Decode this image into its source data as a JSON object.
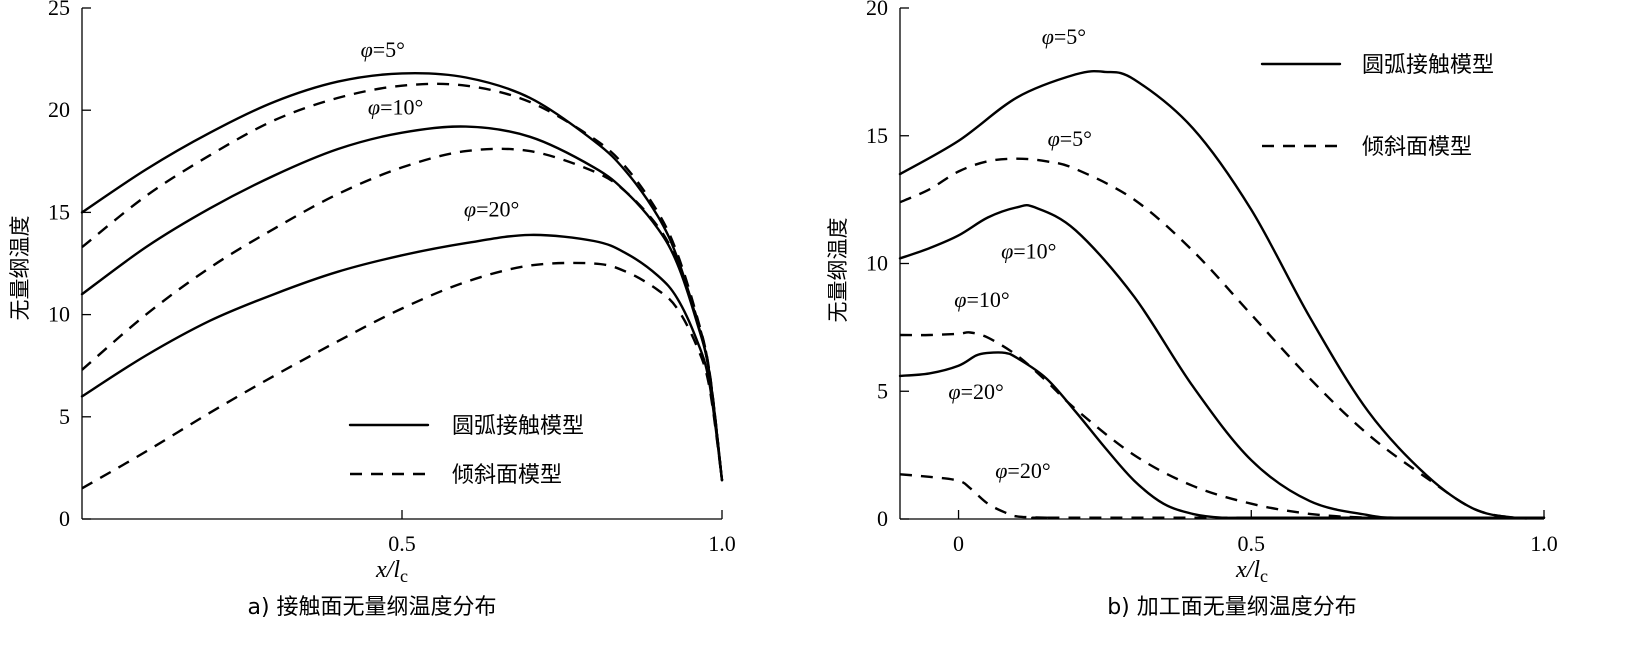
{
  "chart_data": [
    {
      "type": "line",
      "caption": "a) 接触面无量纲温度分布",
      "xlabel": "x/l",
      "xlabel_sub": "c",
      "ylabel": "无量纲温度",
      "xlim": [
        0,
        1.0
      ],
      "ylim": [
        0,
        25
      ],
      "xticks": [
        0.5,
        1.0
      ],
      "xtick_labels": [
        "0.5",
        "1.0"
      ],
      "yticks": [
        0,
        5,
        10,
        15,
        20,
        25
      ],
      "ytick_labels": [
        "0",
        "5",
        "10",
        "15",
        "20",
        "25"
      ],
      "legend": {
        "position": "bottom-right",
        "entries": [
          {
            "label": "圆弧接触模型",
            "style": "solid"
          },
          {
            "label": "倾斜面模型",
            "style": "dashed"
          }
        ]
      },
      "annotations": [
        {
          "text": "φ=5°",
          "x": 0.47,
          "y": 22.6
        },
        {
          "text": "φ=10°",
          "x": 0.49,
          "y": 19.8
        },
        {
          "text": "φ=20°",
          "x": 0.64,
          "y": 14.8
        }
      ],
      "series": [
        {
          "style": "solid",
          "group": "φ=5°",
          "x": [
            0,
            0.1,
            0.2,
            0.3,
            0.4,
            0.5,
            0.6,
            0.7,
            0.8,
            0.85,
            0.9,
            0.93,
            0.96,
            0.98,
            1.0
          ],
          "y": [
            15.0,
            17.1,
            18.9,
            20.4,
            21.4,
            21.8,
            21.6,
            20.6,
            18.5,
            17.0,
            14.8,
            12.8,
            9.8,
            7.2,
            1.9
          ]
        },
        {
          "style": "dashed",
          "group": "φ=5°",
          "x": [
            0,
            0.1,
            0.2,
            0.3,
            0.4,
            0.5,
            0.6,
            0.7,
            0.8,
            0.85,
            0.9,
            0.93,
            0.96,
            0.98,
            1.0
          ],
          "y": [
            13.3,
            15.8,
            17.8,
            19.5,
            20.6,
            21.2,
            21.2,
            20.4,
            18.6,
            17.2,
            15.0,
            13.0,
            10.0,
            7.3,
            1.9
          ]
        },
        {
          "style": "solid",
          "group": "φ=10°",
          "x": [
            0,
            0.1,
            0.2,
            0.3,
            0.4,
            0.5,
            0.6,
            0.7,
            0.8,
            0.85,
            0.9,
            0.93,
            0.96,
            0.98,
            1.0
          ],
          "y": [
            11.0,
            13.3,
            15.2,
            16.8,
            18.1,
            18.9,
            19.2,
            18.7,
            17.2,
            16.0,
            14.2,
            12.5,
            9.7,
            7.2,
            1.9
          ]
        },
        {
          "style": "dashed",
          "group": "φ=10°",
          "x": [
            0,
            0.1,
            0.2,
            0.3,
            0.4,
            0.5,
            0.6,
            0.7,
            0.8,
            0.85,
            0.9,
            0.93,
            0.96,
            0.98,
            1.0
          ],
          "y": [
            7.3,
            10.0,
            12.3,
            14.2,
            15.9,
            17.2,
            18.0,
            18.0,
            17.0,
            16.0,
            14.3,
            12.6,
            9.9,
            7.3,
            1.9
          ]
        },
        {
          "style": "solid",
          "group": "φ=20°",
          "x": [
            0,
            0.1,
            0.2,
            0.3,
            0.4,
            0.5,
            0.6,
            0.7,
            0.8,
            0.85,
            0.9,
            0.93,
            0.96,
            0.98,
            1.0
          ],
          "y": [
            6.0,
            8.0,
            9.7,
            11.0,
            12.1,
            12.9,
            13.5,
            13.9,
            13.6,
            13.0,
            11.9,
            10.8,
            8.8,
            6.7,
            1.9
          ]
        },
        {
          "style": "dashed",
          "group": "φ=20°",
          "x": [
            0,
            0.1,
            0.2,
            0.3,
            0.4,
            0.5,
            0.6,
            0.7,
            0.8,
            0.85,
            0.9,
            0.93,
            0.96,
            0.98,
            1.0
          ],
          "y": [
            1.5,
            3.3,
            5.2,
            7.0,
            8.7,
            10.3,
            11.6,
            12.4,
            12.5,
            12.1,
            11.2,
            10.3,
            8.5,
            6.5,
            1.9
          ]
        }
      ]
    },
    {
      "type": "line",
      "caption": "b) 加工面无量纲温度分布",
      "xlabel": "x/l",
      "xlabel_sub": "c",
      "ylabel": "无量纲温度",
      "xlim": [
        -0.1,
        1.0
      ],
      "ylim": [
        0,
        20
      ],
      "xticks": [
        0,
        0.5,
        1.0
      ],
      "xtick_labels": [
        "0",
        "0.5",
        "1.0"
      ],
      "yticks": [
        0,
        5,
        10,
        15,
        20
      ],
      "ytick_labels": [
        "0",
        "5",
        "10",
        "15",
        "20"
      ],
      "legend": {
        "position": "top-right",
        "entries": [
          {
            "label": "圆弧接触模型",
            "style": "solid"
          },
          {
            "label": "倾斜面模型",
            "style": "dashed"
          }
        ]
      },
      "annotations": [
        {
          "text": "φ=5°",
          "x": 0.18,
          "y": 18.6
        },
        {
          "text": "φ=5°",
          "x": 0.19,
          "y": 14.6
        },
        {
          "text": "φ=10°",
          "x": 0.12,
          "y": 10.2
        },
        {
          "text": "φ=10°",
          "x": 0.04,
          "y": 8.3
        },
        {
          "text": "φ=20°",
          "x": 0.03,
          "y": 4.7
        },
        {
          "text": "φ=20°",
          "x": 0.11,
          "y": 1.6
        }
      ],
      "series": [
        {
          "style": "solid",
          "group": "φ=5°",
          "x": [
            -0.1,
            0,
            0.1,
            0.2,
            0.25,
            0.3,
            0.4,
            0.5,
            0.6,
            0.7,
            0.8,
            0.88,
            0.95,
            1.0
          ],
          "y": [
            13.5,
            14.8,
            16.5,
            17.4,
            17.5,
            17.2,
            15.3,
            12.1,
            7.9,
            4.2,
            1.7,
            0.4,
            0.05,
            0.05
          ]
        },
        {
          "style": "dashed",
          "group": "φ=5°",
          "x": [
            -0.1,
            -0.05,
            0,
            0.05,
            0.1,
            0.15,
            0.2,
            0.3,
            0.4,
            0.5,
            0.6,
            0.7,
            0.8,
            0.88,
            0.95,
            1.0
          ],
          "y": [
            12.4,
            12.9,
            13.6,
            14.0,
            14.1,
            14.0,
            13.7,
            12.5,
            10.5,
            8.0,
            5.5,
            3.3,
            1.6,
            0.4,
            0.05,
            0.05
          ]
        },
        {
          "style": "solid",
          "group": "φ=10°",
          "x": [
            -0.1,
            -0.05,
            0,
            0.05,
            0.1,
            0.13,
            0.2,
            0.3,
            0.4,
            0.5,
            0.6,
            0.7,
            0.75,
            0.85,
            1.0
          ],
          "y": [
            10.2,
            10.6,
            11.1,
            11.8,
            12.2,
            12.2,
            11.3,
            8.7,
            5.2,
            2.3,
            0.7,
            0.15,
            0.05,
            0.05,
            0.05
          ]
        },
        {
          "style": "dashed",
          "group": "φ=10°",
          "x": [
            -0.1,
            -0.05,
            0,
            0.02,
            0.05,
            0.1,
            0.15,
            0.2,
            0.3,
            0.4,
            0.5,
            0.6,
            0.7,
            0.8,
            1.0
          ],
          "y": [
            7.2,
            7.2,
            7.25,
            7.3,
            7.1,
            6.4,
            5.4,
            4.3,
            2.5,
            1.3,
            0.6,
            0.2,
            0.05,
            0.05,
            0.05
          ]
        },
        {
          "style": "solid",
          "group": "φ=20°",
          "x": [
            -0.1,
            -0.05,
            0,
            0.03,
            0.05,
            0.08,
            0.1,
            0.15,
            0.2,
            0.25,
            0.3,
            0.35,
            0.4,
            0.45,
            0.5,
            1.0
          ],
          "y": [
            5.6,
            5.7,
            6.0,
            6.4,
            6.5,
            6.5,
            6.3,
            5.5,
            4.2,
            2.8,
            1.5,
            0.6,
            0.2,
            0.05,
            0.05,
            0.05
          ]
        },
        {
          "style": "dashed",
          "group": "φ=20°",
          "x": [
            -0.1,
            -0.05,
            0,
            0.02,
            0.05,
            0.08,
            0.1,
            0.15,
            0.2,
            1.0
          ],
          "y": [
            1.75,
            1.65,
            1.5,
            1.2,
            0.6,
            0.25,
            0.1,
            0.05,
            0.05,
            0.05
          ]
        }
      ]
    }
  ]
}
